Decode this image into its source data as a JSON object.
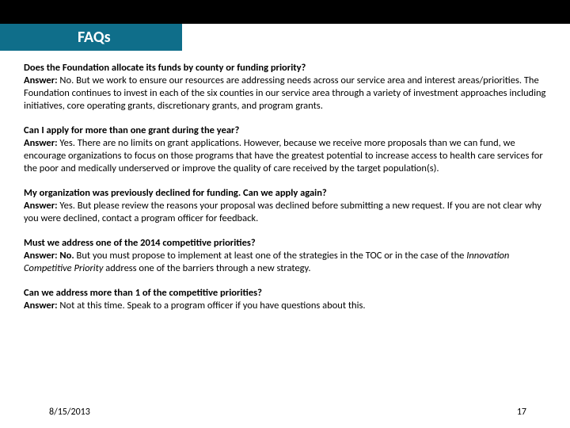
{
  "header": {
    "title": "FAQs"
  },
  "faqs": [
    {
      "question": "Does the Foundation allocate its funds by county or funding priority?",
      "answer_label": "Answer:",
      "answer_text": " No. But we work to ensure our resources are addressing needs across our service area and  interest areas/priorities.  The Foundation continues to invest in each of the six counties in our service area through a variety of investment approaches including initiatives, core operating grants, discretionary grants, and program grants."
    },
    {
      "question": "Can I apply for more than one grant during the year?",
      "answer_label": "Answer:",
      "answer_text": " Yes. There are no limits on grant applications. However, because we receive more proposals than we can fund, we encourage organizations to focus on those programs that have the greatest potential to increase access to health care services for the poor and medically underserved or improve the quality of care received by the target population(s)."
    },
    {
      "question": "My organization was previously declined for funding. Can we apply again?",
      "answer_label": "Answer:",
      "answer_text": " Yes. But please review the reasons your proposal was declined before submitting a new request. If you are not clear why you were declined, contact a program officer for feedback."
    },
    {
      "question": "Must we address one of the 2014 competitive priorities?",
      "answer_label": "Answer: No.",
      "answer_text": " But you must propose to implement at least one of the strategies in the TOC or in the case of the Innovation Competitive Priority address one of the barriers through a new strategy.",
      "italic_phrase": "Innovation Competitive Priority"
    },
    {
      "question": "Can we address more than 1 of the competitive priorities?",
      "answer_label": "Answer:",
      "answer_text": " Not at this time. Speak to a program officer if you have questions about this."
    }
  ],
  "footer": {
    "date": "8/15/2013",
    "page": "17"
  },
  "colors": {
    "top_bar": "#000000",
    "title_box": "#0f6e8a",
    "title_text": "#ffffff",
    "body_text": "#000000",
    "background": "#ffffff"
  }
}
